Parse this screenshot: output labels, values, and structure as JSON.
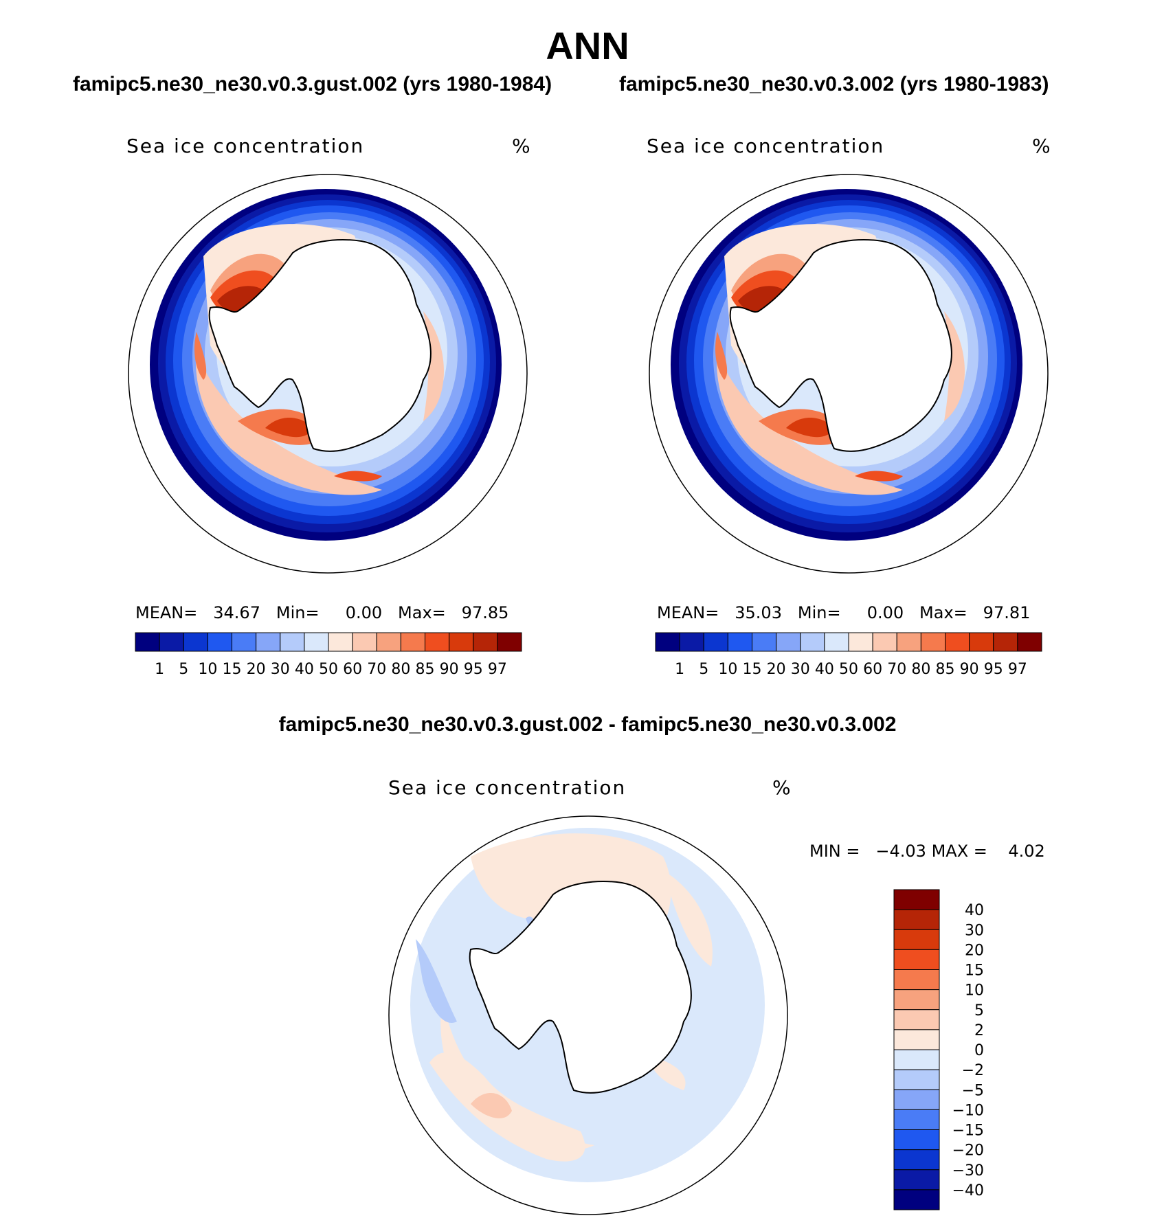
{
  "season": "ANN",
  "panels": [
    {
      "case_title": "famipc5.ne30_ne30.v0.3.gust.002 (yrs 1980-1984)",
      "variable": "Sea ice concentration",
      "units": "%",
      "stats": {
        "mean_label": "MEAN=",
        "mean": "34.67",
        "min_label": "Min=",
        "min": "0.00",
        "max_label": "Max=",
        "max": "97.85"
      }
    },
    {
      "case_title": "famipc5.ne30_ne30.v0.3.002 (yrs 1980-1983)",
      "variable": "Sea ice concentration",
      "units": "%",
      "stats": {
        "mean_label": "MEAN=",
        "mean": "35.03",
        "min_label": "Min=",
        "min": "0.00",
        "max_label": "Max=",
        "max": "97.81"
      }
    }
  ],
  "difference": {
    "title": "famipc5.ne30_ne30.v0.3.gust.002 - famipc5.ne30_ne30.v0.3.002",
    "variable": "Sea ice concentration",
    "units": "%",
    "stats": {
      "min_label": "MIN =",
      "min": "−4.03",
      "max_label": "MAX =",
      "max": "4.02"
    }
  },
  "colorbar_abs": {
    "labels": [
      "1",
      "5",
      "10",
      "15",
      "20",
      "30",
      "40",
      "50",
      "60",
      "70",
      "80",
      "85",
      "90",
      "95",
      "97"
    ],
    "colors": [
      "#00007f",
      "#0a1aa6",
      "#0b36d0",
      "#1f58f0",
      "#4a7cf6",
      "#86a6f8",
      "#b4cbfa",
      "#dae8fb",
      "#fce8db",
      "#fbc9b2",
      "#f7a27e",
      "#f57a4d",
      "#ef4e1f",
      "#d83a0c",
      "#b52507",
      "#7f0000"
    ]
  },
  "colorbar_diff": {
    "labels": [
      "40",
      "30",
      "20",
      "15",
      "10",
      "5",
      "2",
      "0",
      "−2",
      "−5",
      "−10",
      "−15",
      "−20",
      "−30",
      "−40"
    ],
    "colors": [
      "#7f0000",
      "#b52507",
      "#d83a0c",
      "#ef4e1f",
      "#f57a4d",
      "#f7a27e",
      "#fbc9b2",
      "#fce8db",
      "#dae8fb",
      "#b4cbfa",
      "#86a6f8",
      "#4a7cf6",
      "#1f58f0",
      "#0b36d0",
      "#0a1aa6",
      "#00007f"
    ]
  }
}
